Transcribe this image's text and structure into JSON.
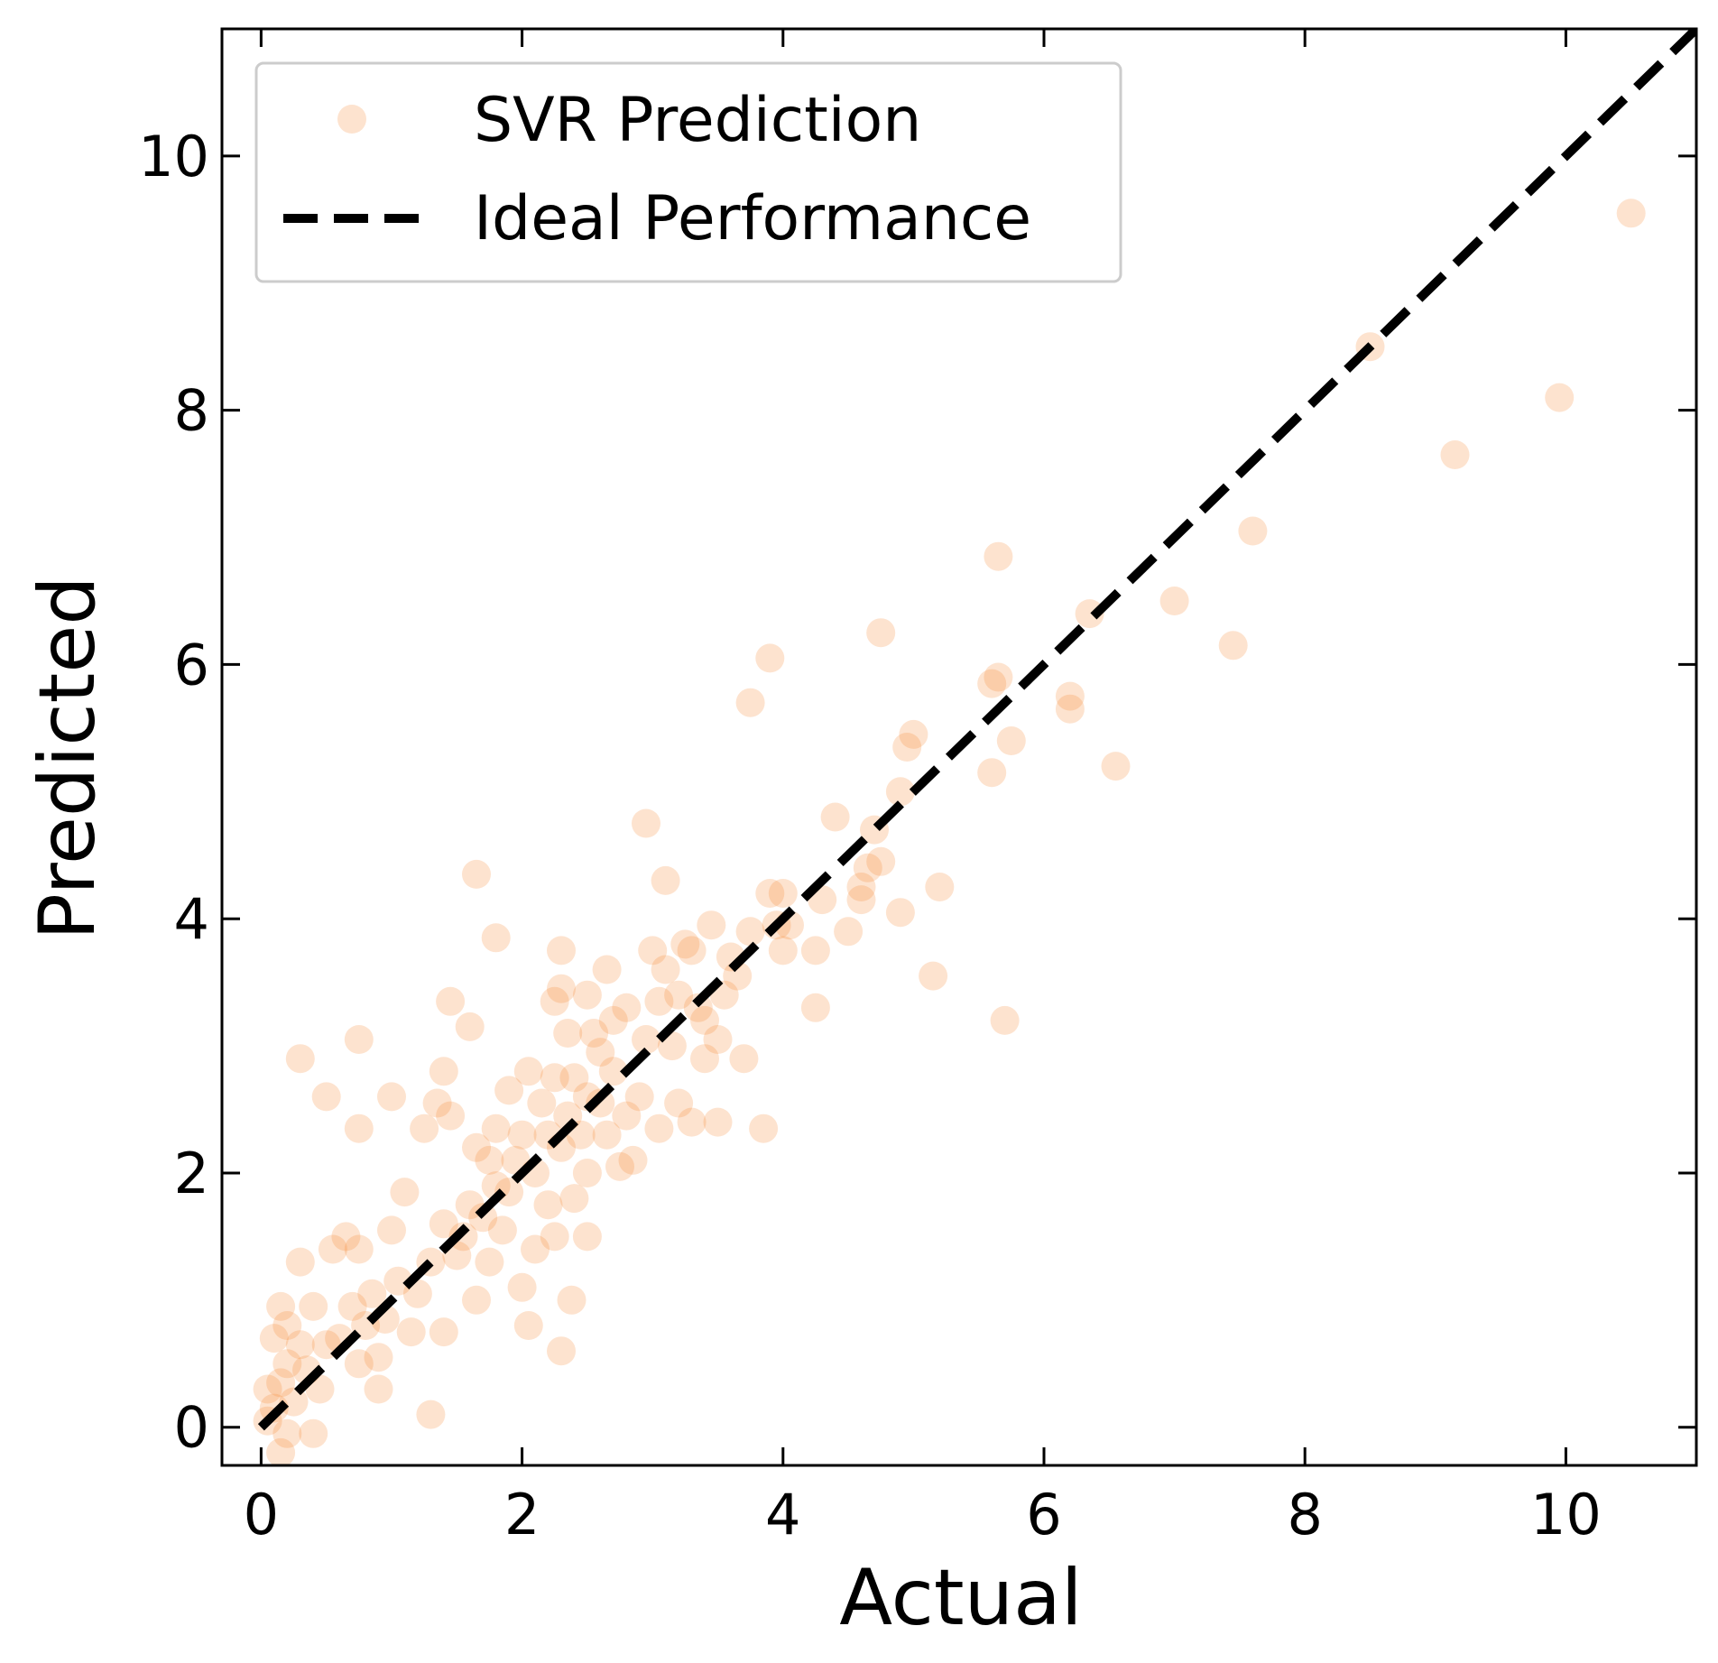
{
  "chart_data": {
    "type": "scatter",
    "title": "",
    "xlabel": "Actual",
    "ylabel": "Predicted",
    "xlim": [
      -0.3,
      11.0
    ],
    "ylim": [
      -0.3,
      11.0
    ],
    "x_ticks": [
      0,
      2,
      4,
      6,
      8,
      10
    ],
    "y_ticks": [
      0,
      2,
      4,
      6,
      8,
      10
    ],
    "x_tick_labels": [
      "0",
      "2",
      "4",
      "6",
      "8",
      "10"
    ],
    "y_tick_labels": [
      "0",
      "2",
      "4",
      "6",
      "8",
      "10"
    ],
    "grid": false,
    "legend": {
      "placement": "top-left",
      "entries": [
        "SVR Prediction",
        "Ideal Performance"
      ]
    },
    "colors": {
      "points": "#f48026",
      "ideal_line": "#000000"
    },
    "point_opacity": 0.22,
    "ideal_line": {
      "from": [
        0,
        0
      ],
      "to": [
        11.0,
        11.0
      ],
      "style": "dashed"
    },
    "series": [
      {
        "name": "SVR Prediction",
        "kind": "scatter",
        "points": [
          [
            10.5,
            9.55
          ],
          [
            9.95,
            8.1
          ],
          [
            9.15,
            7.65
          ],
          [
            8.5,
            8.5
          ],
          [
            7.6,
            7.05
          ],
          [
            7.45,
            6.15
          ],
          [
            7.0,
            6.5
          ],
          [
            6.55,
            5.2
          ],
          [
            6.35,
            6.4
          ],
          [
            6.2,
            5.75
          ],
          [
            6.2,
            5.65
          ],
          [
            5.75,
            5.4
          ],
          [
            5.7,
            3.2
          ],
          [
            5.65,
            6.85
          ],
          [
            5.65,
            5.9
          ],
          [
            5.6,
            5.85
          ],
          [
            5.6,
            5.15
          ],
          [
            5.2,
            4.25
          ],
          [
            5.15,
            3.55
          ],
          [
            5.0,
            5.45
          ],
          [
            4.95,
            5.35
          ],
          [
            4.9,
            5.0
          ],
          [
            4.9,
            4.05
          ],
          [
            4.75,
            6.25
          ],
          [
            4.75,
            4.45
          ],
          [
            4.7,
            4.7
          ],
          [
            4.65,
            4.4
          ],
          [
            4.6,
            4.25
          ],
          [
            4.6,
            4.15
          ],
          [
            4.5,
            3.9
          ],
          [
            4.4,
            4.8
          ],
          [
            4.3,
            4.15
          ],
          [
            4.25,
            3.75
          ],
          [
            4.25,
            3.3
          ],
          [
            4.05,
            3.95
          ],
          [
            4.0,
            4.2
          ],
          [
            4.0,
            3.75
          ],
          [
            3.95,
            3.95
          ],
          [
            3.9,
            6.05
          ],
          [
            3.9,
            4.2
          ],
          [
            3.85,
            2.35
          ],
          [
            3.75,
            5.7
          ],
          [
            3.75,
            3.9
          ],
          [
            3.7,
            2.9
          ],
          [
            3.65,
            3.55
          ],
          [
            3.6,
            3.7
          ],
          [
            3.55,
            3.4
          ],
          [
            3.5,
            3.05
          ],
          [
            3.5,
            2.4
          ],
          [
            3.45,
            3.95
          ],
          [
            3.4,
            3.2
          ],
          [
            3.4,
            2.9
          ],
          [
            3.35,
            3.3
          ],
          [
            3.3,
            3.75
          ],
          [
            3.3,
            2.4
          ],
          [
            3.25,
            3.8
          ],
          [
            3.2,
            3.4
          ],
          [
            3.2,
            2.55
          ],
          [
            3.15,
            3.0
          ],
          [
            3.1,
            4.3
          ],
          [
            3.1,
            3.6
          ],
          [
            3.05,
            3.35
          ],
          [
            3.05,
            2.35
          ],
          [
            3.0,
            3.75
          ],
          [
            2.95,
            4.75
          ],
          [
            2.95,
            3.05
          ],
          [
            2.9,
            2.6
          ],
          [
            2.85,
            2.1
          ],
          [
            2.8,
            3.3
          ],
          [
            2.8,
            2.45
          ],
          [
            2.75,
            2.05
          ],
          [
            2.7,
            3.2
          ],
          [
            2.7,
            2.8
          ],
          [
            2.65,
            3.6
          ],
          [
            2.65,
            2.3
          ],
          [
            2.6,
            2.95
          ],
          [
            2.6,
            2.55
          ],
          [
            2.55,
            3.1
          ],
          [
            2.5,
            3.4
          ],
          [
            2.5,
            2.6
          ],
          [
            2.5,
            2.0
          ],
          [
            2.5,
            1.5
          ],
          [
            2.45,
            2.3
          ],
          [
            2.4,
            2.75
          ],
          [
            2.4,
            1.8
          ],
          [
            2.38,
            1.0
          ],
          [
            2.35,
            3.1
          ],
          [
            2.35,
            2.45
          ],
          [
            2.3,
            3.75
          ],
          [
            2.3,
            3.45
          ],
          [
            2.3,
            2.2
          ],
          [
            2.3,
            0.6
          ],
          [
            2.25,
            3.35
          ],
          [
            2.25,
            2.75
          ],
          [
            2.25,
            1.5
          ],
          [
            2.2,
            2.3
          ],
          [
            2.2,
            1.75
          ],
          [
            2.15,
            2.55
          ],
          [
            2.1,
            2.0
          ],
          [
            2.1,
            1.4
          ],
          [
            2.05,
            2.8
          ],
          [
            2.05,
            0.8
          ],
          [
            2.0,
            2.3
          ],
          [
            2.0,
            1.1
          ],
          [
            1.95,
            2.1
          ],
          [
            1.9,
            2.65
          ],
          [
            1.9,
            1.85
          ],
          [
            1.85,
            1.55
          ],
          [
            1.8,
            3.85
          ],
          [
            1.8,
            2.35
          ],
          [
            1.8,
            1.9
          ],
          [
            1.75,
            2.1
          ],
          [
            1.75,
            1.3
          ],
          [
            1.7,
            1.65
          ],
          [
            1.65,
            4.35
          ],
          [
            1.65,
            2.2
          ],
          [
            1.65,
            1.0
          ],
          [
            1.6,
            3.15
          ],
          [
            1.6,
            1.75
          ],
          [
            1.55,
            1.5
          ],
          [
            1.5,
            1.35
          ],
          [
            1.45,
            3.35
          ],
          [
            1.45,
            2.45
          ],
          [
            1.4,
            2.8
          ],
          [
            1.4,
            1.6
          ],
          [
            1.4,
            0.75
          ],
          [
            1.35,
            2.55
          ],
          [
            1.3,
            1.3
          ],
          [
            1.3,
            0.1
          ],
          [
            1.25,
            2.35
          ],
          [
            1.2,
            1.05
          ],
          [
            1.15,
            0.75
          ],
          [
            1.1,
            1.85
          ],
          [
            1.05,
            1.15
          ],
          [
            1.0,
            2.6
          ],
          [
            1.0,
            1.55
          ],
          [
            0.95,
            0.85
          ],
          [
            0.9,
            0.55
          ],
          [
            0.9,
            0.3
          ],
          [
            0.85,
            1.05
          ],
          [
            0.8,
            0.8
          ],
          [
            0.75,
            3.05
          ],
          [
            0.75,
            2.35
          ],
          [
            0.75,
            1.4
          ],
          [
            0.75,
            0.5
          ],
          [
            0.7,
            0.95
          ],
          [
            0.65,
            1.5
          ],
          [
            0.6,
            0.7
          ],
          [
            0.55,
            1.4
          ],
          [
            0.5,
            2.6
          ],
          [
            0.5,
            0.65
          ],
          [
            0.45,
            0.3
          ],
          [
            0.4,
            0.95
          ],
          [
            0.4,
            -0.05
          ],
          [
            0.35,
            0.45
          ],
          [
            0.3,
            2.9
          ],
          [
            0.3,
            1.3
          ],
          [
            0.3,
            0.65
          ],
          [
            0.25,
            0.2
          ],
          [
            0.2,
            0.8
          ],
          [
            0.2,
            0.5
          ],
          [
            0.2,
            -0.05
          ],
          [
            0.15,
            0.95
          ],
          [
            0.15,
            0.35
          ],
          [
            0.15,
            -0.2
          ],
          [
            0.1,
            0.7
          ],
          [
            0.1,
            0.15
          ],
          [
            0.05,
            0.3
          ],
          [
            0.05,
            0.05
          ]
        ]
      },
      {
        "name": "Ideal Performance",
        "kind": "line",
        "points": [
          [
            0,
            0
          ],
          [
            11.0,
            11.0
          ]
        ]
      }
    ]
  }
}
